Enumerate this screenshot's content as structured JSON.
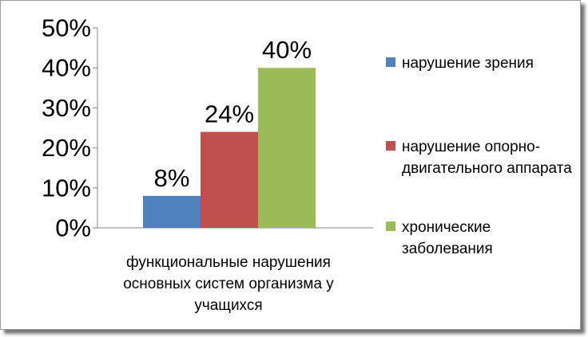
{
  "chart_data": {
    "type": "bar",
    "title": "",
    "xlabel": "",
    "ylabel": "",
    "categories": [
      "функциональные нарушения основных систем организма у учащихся"
    ],
    "series": [
      {
        "name": "нарушение зрения",
        "values": [
          8
        ],
        "color": "#4F81BD",
        "label": "8%"
      },
      {
        "name": "нарушение опорно-двигательного аппарата",
        "values": [
          24
        ],
        "color": "#C0504D",
        "label": "24%"
      },
      {
        "name": "хронические заболевания",
        "values": [
          40
        ],
        "color": "#9BBB59",
        "label": "40%"
      }
    ],
    "ylim": [
      0,
      50
    ],
    "yticks": [
      0,
      10,
      20,
      30,
      40,
      50
    ],
    "ytick_labels": [
      "0%",
      "10%",
      "20%",
      "30%",
      "40%",
      "50%"
    ],
    "grid": false,
    "legend_position": "right"
  }
}
